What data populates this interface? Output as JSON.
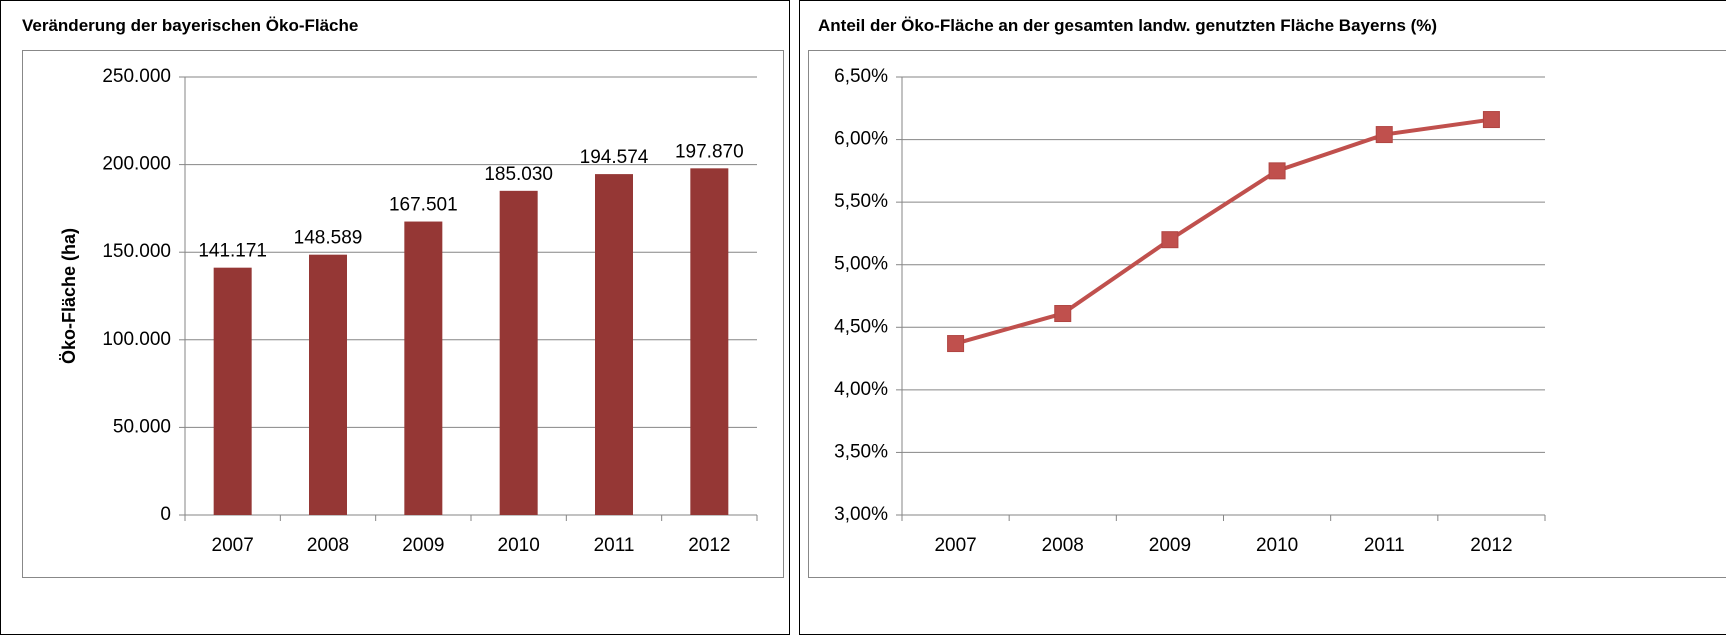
{
  "chart_data": [
    {
      "type": "bar",
      "title": "Veränderung der bayerischen Öko-Fläche",
      "y_label": "Öko-Fläche (ha)",
      "categories": [
        "2007",
        "2008",
        "2009",
        "2010",
        "2011",
        "2012"
      ],
      "values": [
        141171,
        148589,
        167501,
        185030,
        194574,
        197870
      ],
      "value_labels": [
        "141.171",
        "148.589",
        "167.501",
        "185.030",
        "194.574",
        "197.870"
      ],
      "color": "#953735",
      "ylim": [
        0,
        250000
      ],
      "yticks": [
        0,
        {
          "value": 50000,
          "label": "50.000"
        },
        {
          "value": 100000,
          "label": "100.000"
        },
        {
          "value": 150000,
          "label": "150.000"
        },
        {
          "value": 200000,
          "label": "200.000"
        },
        {
          "value": 250000,
          "label": "250.000"
        }
      ],
      "grid": true
    },
    {
      "type": "line",
      "title": "Anteil der Öko-Fläche an der gesamten landw. genutzten Fläche Bayerns (%)",
      "categories": [
        "2007",
        "2008",
        "2009",
        "2010",
        "2011",
        "2012"
      ],
      "values": [
        4.37,
        4.61,
        5.2,
        5.75,
        6.04,
        6.16
      ],
      "color": "#c0504d",
      "ylim": [
        3.0,
        6.5
      ],
      "yticks": [
        {
          "value": 3.0,
          "label": "3,00%"
        },
        {
          "value": 3.5,
          "label": "3,50%"
        },
        {
          "value": 4.0,
          "label": "4,00%"
        },
        {
          "value": 4.5,
          "label": "4,50%"
        },
        {
          "value": 5.0,
          "label": "5,00%"
        },
        {
          "value": 5.5,
          "label": "5,50%"
        },
        {
          "value": 6.0,
          "label": "6,00%"
        },
        {
          "value": 6.5,
          "label": "6,50%"
        }
      ],
      "grid": true
    }
  ]
}
